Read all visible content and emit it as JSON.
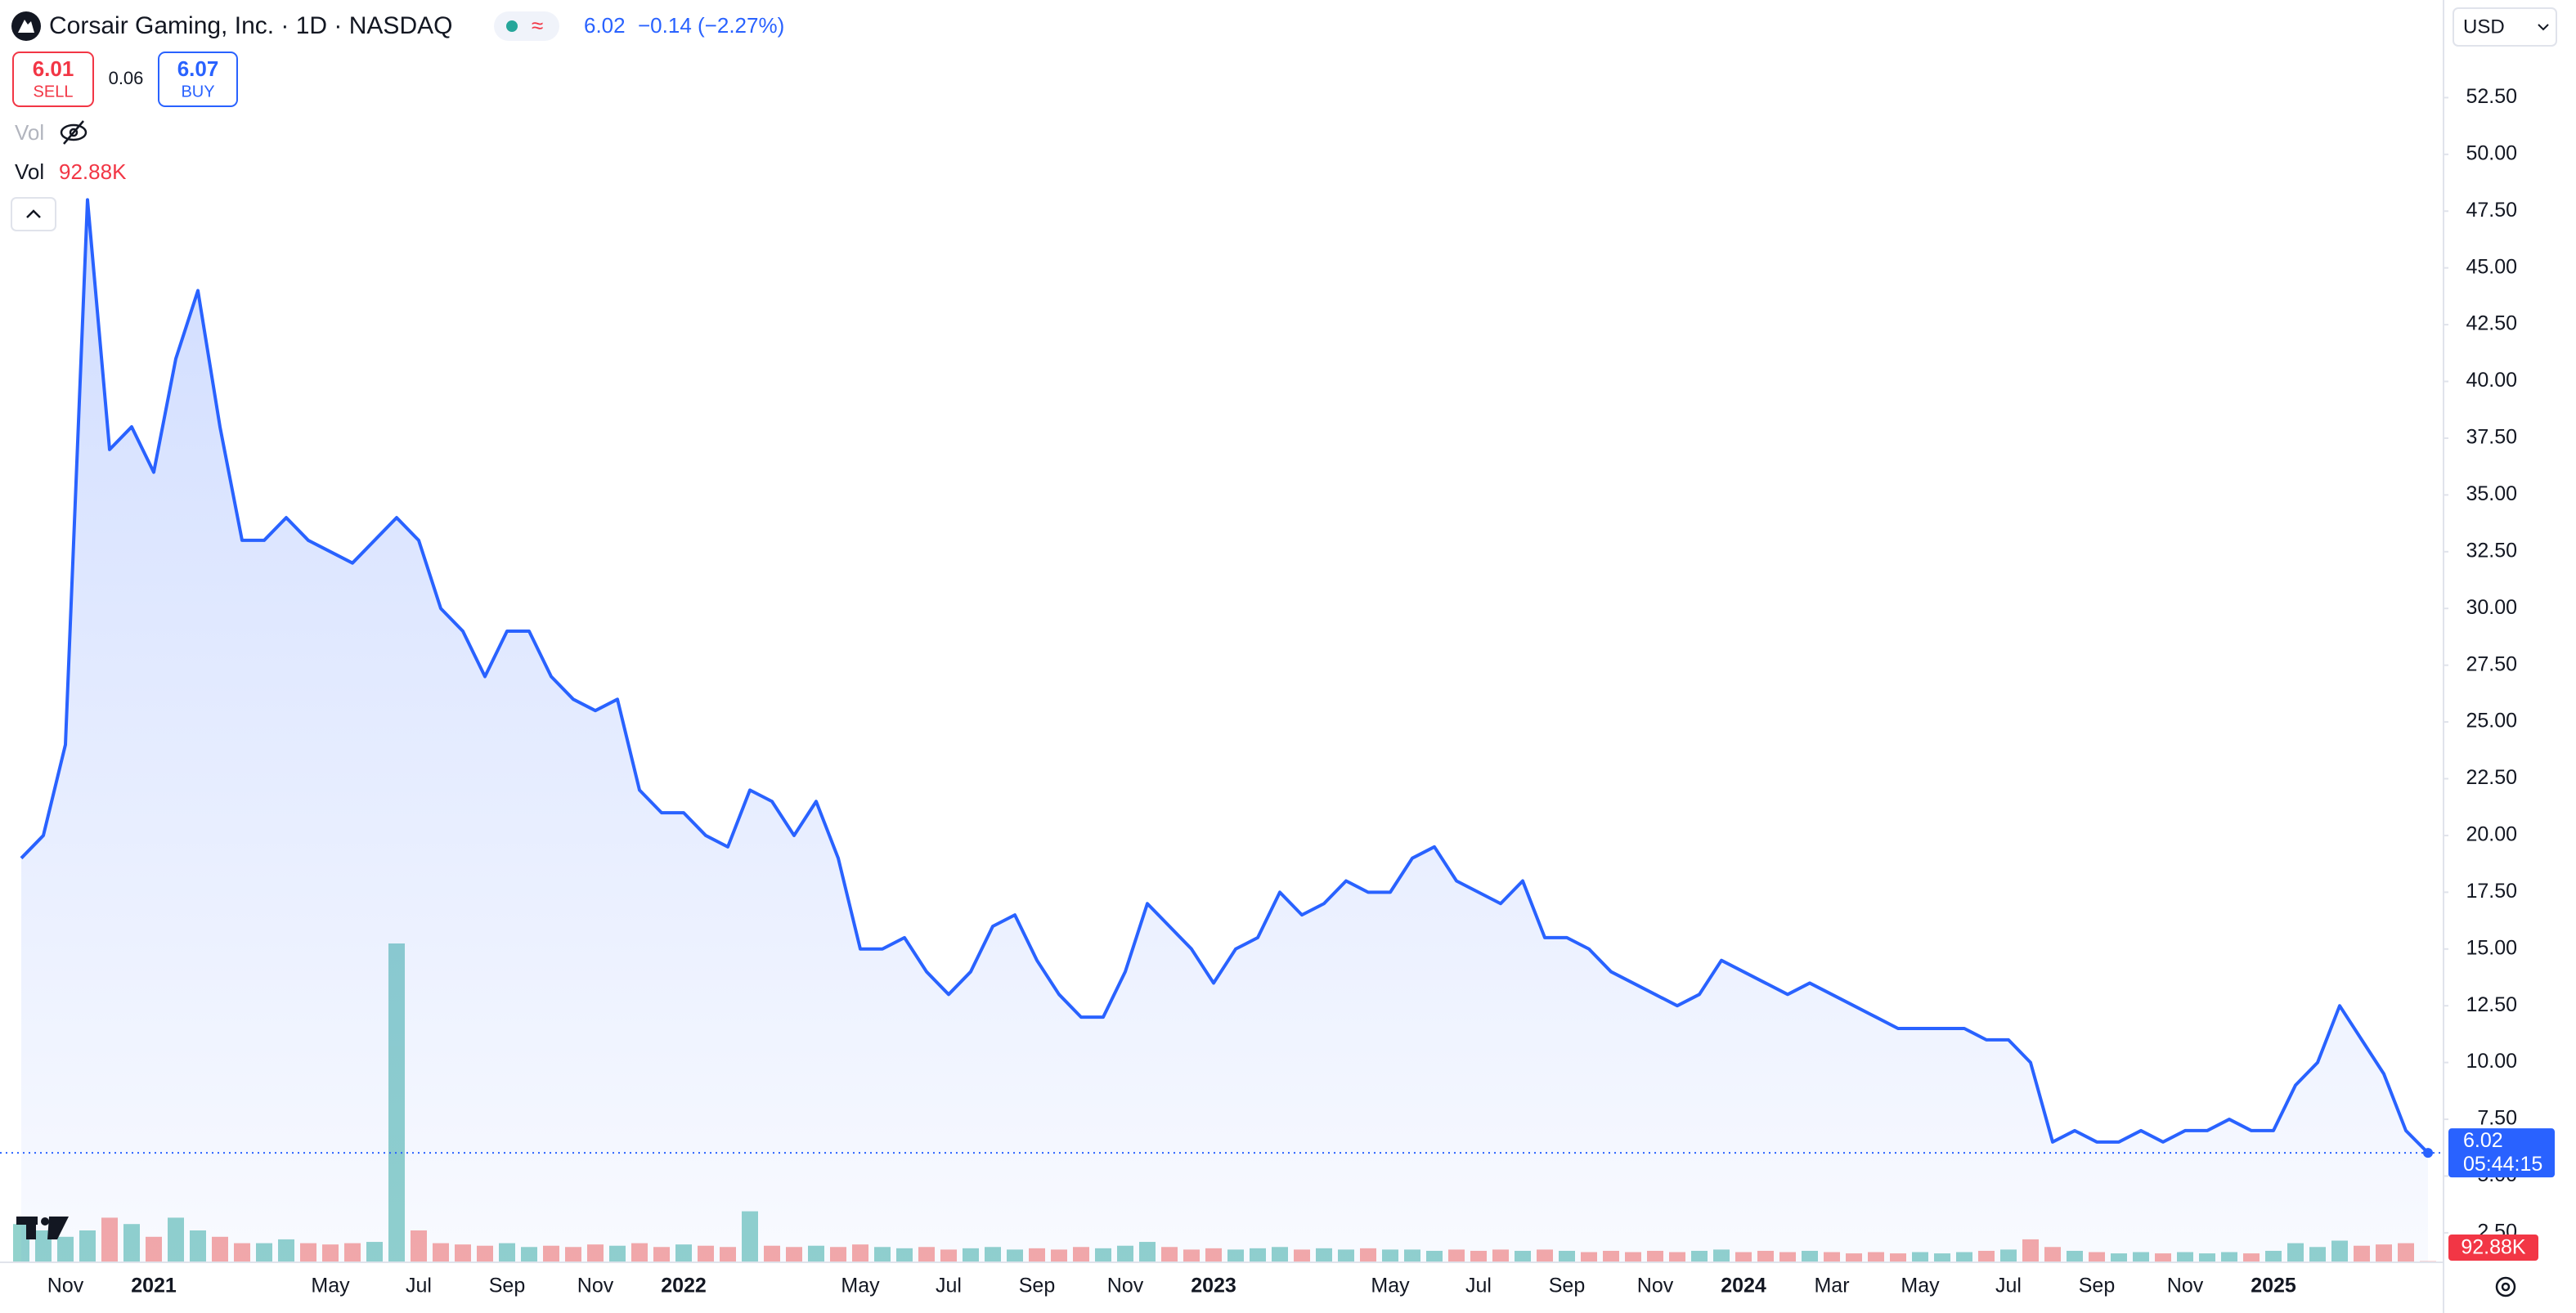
{
  "header": {
    "title": "Corsair Gaming, Inc. · 1D · NASDAQ",
    "change": "−0.14 (−2.27%)",
    "currency": "USD",
    "countdown": "05:44:15"
  },
  "trade": {
    "sell_price": "6.01",
    "sell": "SELL",
    "spread": "0.06",
    "buy_price": "6.07",
    "buy": "BUY"
  },
  "legend": {
    "hidden_volume": "Vol"
  },
  "chart_data": {
    "type": "line",
    "categories": [
      null,
      null,
      "Nov",
      null,
      null,
      null,
      "2021",
      null,
      null,
      null,
      null,
      null,
      null,
      null,
      "May",
      null,
      null,
      null,
      "Jul",
      null,
      null,
      null,
      "Sep",
      null,
      null,
      null,
      "Nov",
      null,
      null,
      null,
      "2022",
      null,
      null,
      null,
      null,
      null,
      null,
      null,
      "May",
      null,
      null,
      null,
      "Jul",
      null,
      null,
      null,
      "Sep",
      null,
      null,
      null,
      "Nov",
      null,
      null,
      null,
      "2023",
      null,
      null,
      null,
      null,
      null,
      null,
      null,
      "May",
      null,
      null,
      null,
      "Jul",
      null,
      null,
      null,
      "Sep",
      null,
      null,
      null,
      "Nov",
      null,
      null,
      null,
      "2024",
      null,
      null,
      null,
      "Mar",
      null,
      null,
      null,
      "May",
      null,
      null,
      null,
      "Jul",
      null,
      null,
      null,
      "Sep",
      null,
      null,
      null,
      "Nov",
      null,
      null,
      null,
      "2025",
      null,
      null,
      null,
      null,
      null,
      null,
      null
    ],
    "series": [
      {
        "name": "Corsair Gaming, Inc.",
        "color": "#2962ff",
        "values": [
          19,
          20,
          24,
          48,
          37,
          38,
          36,
          41,
          44,
          38,
          33,
          33,
          34,
          33,
          32.5,
          32,
          33,
          34,
          33,
          30,
          29,
          27,
          29,
          29,
          27,
          26,
          25.5,
          26,
          22,
          21,
          21,
          20,
          19.5,
          22,
          21.5,
          20,
          21.5,
          19,
          15,
          15,
          15.5,
          14,
          13,
          14,
          16,
          16.5,
          14.5,
          13,
          12,
          12,
          14,
          17,
          16,
          15,
          13.5,
          15,
          15.5,
          17.5,
          16.5,
          17,
          18,
          17.5,
          17.5,
          19,
          19.5,
          18,
          17.5,
          17,
          18,
          15.5,
          15.5,
          15,
          14,
          13.5,
          13,
          12.5,
          13,
          14.5,
          14,
          13.5,
          13,
          13.5,
          13,
          12.5,
          12,
          11.5,
          11.5,
          11.5,
          11.5,
          11,
          11,
          10,
          6.5,
          7,
          6.5,
          6.5,
          7,
          6.5,
          7,
          7,
          7.5,
          7,
          7,
          9,
          10,
          12.5,
          11,
          9.5,
          7,
          6.02
        ]
      }
    ],
    "volume": {
      "name": "Vol",
      "up_color": "rgba(38,166,154,0.5)",
      "down_color": "rgba(239,83,80,0.5)",
      "last_label": "92.88K",
      "values": [
        3000000,
        2500000,
        2000000,
        2500000,
        3500000,
        3000000,
        2000000,
        3500000,
        2500000,
        2000000,
        1500000,
        1500000,
        1800000,
        1500000,
        1400000,
        1500000,
        1600000,
        25000000,
        2500000,
        1500000,
        1400000,
        1300000,
        1500000,
        1200000,
        1300000,
        1200000,
        1400000,
        1300000,
        1500000,
        1200000,
        1400000,
        1300000,
        1200000,
        4000000,
        1300000,
        1200000,
        1300000,
        1200000,
        1400000,
        1200000,
        1100000,
        1200000,
        1000000,
        1100000,
        1200000,
        1000000,
        1100000,
        1000000,
        1200000,
        1100000,
        1300000,
        1600000,
        1200000,
        1000000,
        1100000,
        1000000,
        1100000,
        1200000,
        1000000,
        1100000,
        1000000,
        1100000,
        1000000,
        1000000,
        900000,
        1000000,
        900000,
        1000000,
        900000,
        1000000,
        900000,
        800000,
        900000,
        800000,
        900000,
        800000,
        900000,
        1000000,
        800000,
        900000,
        800000,
        900000,
        800000,
        700000,
        800000,
        700000,
        800000,
        700000,
        800000,
        900000,
        1000000,
        1800000,
        1200000,
        900000,
        800000,
        700000,
        800000,
        700000,
        800000,
        700000,
        800000,
        700000,
        900000,
        1500000,
        1200000,
        1700000,
        1300000,
        1400000,
        1500000,
        92880
      ]
    },
    "ylim": [
      1.2,
      56.8
    ],
    "yticks": [
      {
        "value": 2.5,
        "label": "2.50"
      },
      {
        "value": 5,
        "label": "5.00"
      },
      {
        "value": 7.5,
        "label": "7.50"
      },
      {
        "value": 10,
        "label": "10.00"
      },
      {
        "value": 12.5,
        "label": "12.50"
      },
      {
        "value": 15,
        "label": "15.00"
      },
      {
        "value": 17.5,
        "label": "17.50"
      },
      {
        "value": 20,
        "label": "20.00"
      },
      {
        "value": 22.5,
        "label": "22.50"
      },
      {
        "value": 25,
        "label": "25.00"
      },
      {
        "value": 27.5,
        "label": "27.50"
      },
      {
        "value": 30,
        "label": "30.00"
      },
      {
        "value": 32.5,
        "label": "32.50"
      },
      {
        "value": 35,
        "label": "35.00"
      },
      {
        "value": 37.5,
        "label": "37.50"
      },
      {
        "value": 40,
        "label": "40.00"
      },
      {
        "value": 42.5,
        "label": "42.50"
      },
      {
        "value": 45,
        "label": "45.00"
      },
      {
        "value": 47.5,
        "label": "47.50"
      },
      {
        "value": 50,
        "label": "50.00"
      },
      {
        "value": 52.5,
        "label": "52.50"
      }
    ],
    "grid": false
  }
}
